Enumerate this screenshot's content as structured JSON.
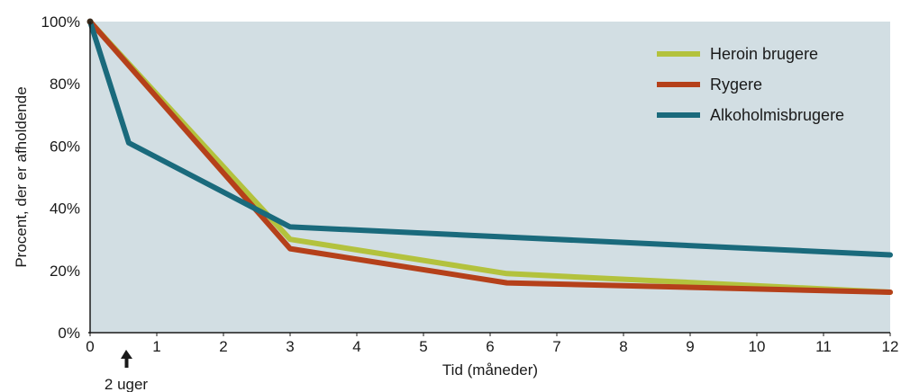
{
  "chart_data": {
    "type": "line",
    "xlabel": "Tid (måneder)",
    "ylabel": "Procent, der er afholdende",
    "xlim": [
      0,
      12
    ],
    "ylim": [
      0,
      100
    ],
    "x_ticks": [
      0,
      1,
      2,
      3,
      4,
      5,
      6,
      7,
      8,
      9,
      10,
      11,
      12
    ],
    "y_ticks": [
      0,
      20,
      40,
      60,
      80,
      100
    ],
    "y_tick_labels": [
      "0%",
      "20%",
      "40%",
      "60%",
      "80%",
      "100%"
    ],
    "grid": false,
    "background": "#d2dee3",
    "legend_position": "top-right",
    "annotation": {
      "text": "2 uger",
      "x": 0.5
    },
    "series": [
      {
        "name": "Heroin brugere",
        "color": "#b3c23d",
        "points": [
          [
            0,
            100
          ],
          [
            3,
            30
          ],
          [
            6.25,
            19
          ],
          [
            12,
            13
          ]
        ]
      },
      {
        "name": "Rygere",
        "color": "#b5401a",
        "points": [
          [
            0,
            100
          ],
          [
            3,
            27
          ],
          [
            6.25,
            16
          ],
          [
            12,
            13
          ]
        ]
      },
      {
        "name": "Alkoholmisbrugere",
        "color": "#1a6a7c",
        "points": [
          [
            0,
            100
          ],
          [
            0.58,
            61
          ],
          [
            3,
            34
          ],
          [
            12,
            25
          ]
        ]
      }
    ]
  }
}
